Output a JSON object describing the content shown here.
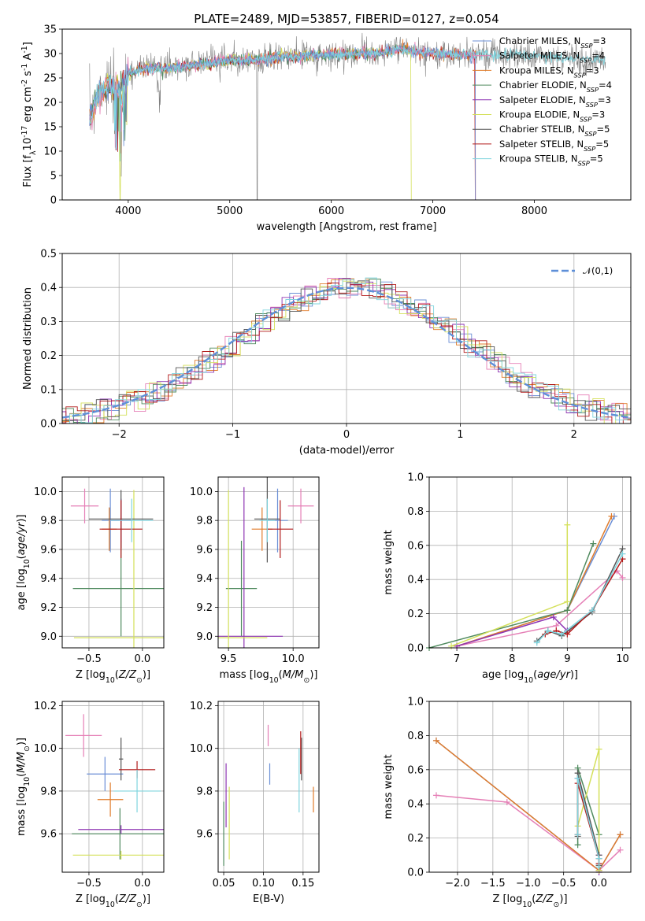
{
  "colors": {
    "Chabrier MILES": "#6b8fd6",
    "Salpeter MILES": "#e57fb6",
    "Kroupa MILES": "#e07b2a",
    "Chabrier ELODIE": "#4f8a5e",
    "Salpeter ELODIE": "#8e35b3",
    "Kroupa ELODIE": "#d4e05a",
    "Chabrier STELIB": "#555555",
    "Salpeter STELIB": "#b21a1a",
    "Kroupa STELIB": "#7fd4de",
    "data": "#808080",
    "gauss": "#5e8fd8"
  },
  "chart_data": [
    {
      "id": "spectrum",
      "type": "line",
      "title": "PLATE=2489, MJD=53857, FIBERID=0127, z=0.054",
      "xlabel": "wavelength [Angstrom, rest frame]",
      "ylabel": "Flux [f$_\\lambda$10$^{-17}$ erg cm$^{-2}$ s$^{-1}$ A$^{-1}$]",
      "xlim": [
        3350,
        8950
      ],
      "ylim": [
        0,
        35
      ],
      "xticks": [
        4000,
        5000,
        6000,
        7000,
        8000
      ],
      "yticks": [
        0,
        5,
        10,
        15,
        20,
        25,
        30,
        35
      ],
      "grid": false,
      "legend_position": "right",
      "legend": [
        {
          "label": "Chabrier MILES, N$_{SSP}$=3",
          "color_key": "Chabrier MILES"
        },
        {
          "label": "Salpeter MILES, N$_{SSP}$=4",
          "color_key": "Salpeter MILES"
        },
        {
          "label": "Kroupa MILES, N$_{SSP}$=3",
          "color_key": "Kroupa MILES"
        },
        {
          "label": "Chabrier ELODIE, N$_{SSP}$=4",
          "color_key": "Chabrier ELODIE"
        },
        {
          "label": "Salpeter ELODIE, N$_{SSP}$=3",
          "color_key": "Salpeter ELODIE"
        },
        {
          "label": "Kroupa ELODIE, N$_{SSP}$=3",
          "color_key": "Kroupa ELODIE"
        },
        {
          "label": "Chabrier STELIB, N$_{SSP}$=5",
          "color_key": "Chabrier STELIB"
        },
        {
          "label": "Salpeter STELIB, N$_{SSP}$=5",
          "color_key": "Salpeter STELIB"
        },
        {
          "label": "Kroupa STELIB, N$_{SSP}$=5",
          "color_key": "Kroupa STELIB"
        }
      ],
      "series": [
        {
          "model": "data",
          "x": [
            3620,
            3650,
            3700,
            3750,
            3800,
            3850,
            3900,
            3950,
            4000,
            4100,
            4200,
            4300,
            4400,
            4500,
            4600,
            4700,
            4800,
            4900,
            5000,
            5100,
            5200,
            5300,
            5400,
            5500,
            5600,
            5700,
            5800,
            5900,
            6000,
            6100,
            6200,
            6300,
            6400,
            6500,
            6600,
            6700,
            6800,
            6900,
            7000,
            7100,
            7200,
            7300,
            7400,
            7500,
            7600,
            7700,
            7800,
            7900,
            8000,
            8100,
            8200,
            8300,
            8400,
            8500,
            8600,
            8700
          ],
          "y": [
            16,
            19,
            22,
            24,
            23,
            22,
            24,
            20,
            26,
            27,
            27.5,
            26.5,
            27,
            28,
            27.5,
            28,
            28.5,
            28,
            29,
            28.5,
            29,
            27.5,
            29,
            29.5,
            29,
            30,
            29.5,
            29.8,
            30,
            29.5,
            29.8,
            30,
            29.5,
            30,
            30.5,
            32,
            30.5,
            30,
            29.5,
            30,
            29.5,
            30,
            29.8,
            29.5,
            30,
            29.5,
            29.5,
            29.7,
            29.4,
            29.3,
            29.1,
            29,
            28.8,
            28.6,
            28.7,
            28.5
          ]
        },
        {
          "model": "Chabrier MILES",
          "x": [
            3620,
            3700,
            3800,
            3900,
            4000,
            4200,
            4400,
            4600,
            4800,
            5000,
            5200,
            5400,
            5600,
            5800,
            6000,
            6200,
            6400,
            6600,
            6700,
            6800,
            7000,
            7200,
            7400
          ],
          "y": [
            17,
            22,
            23,
            23,
            26,
            27,
            27,
            27.5,
            28,
            28.5,
            28.6,
            29,
            29.2,
            29.5,
            29.8,
            29.9,
            30,
            30.5,
            31,
            30.5,
            30,
            29.8,
            29.5
          ]
        },
        {
          "model": "Kroupa STELIB",
          "x": [
            3620,
            3700,
            3800,
            3900,
            3940,
            4000,
            4200,
            4400,
            4600,
            4800,
            5000,
            5200,
            5400,
            5600,
            5800,
            6000,
            6200,
            6400,
            6600,
            6700,
            6800,
            7000,
            7200,
            7400,
            7600,
            7800,
            8000,
            8200,
            8400,
            8600
          ],
          "y": [
            16,
            21,
            24,
            23,
            20,
            26,
            27,
            27,
            27.5,
            28,
            28.8,
            28.7,
            29,
            29.5,
            29.6,
            29.9,
            30,
            30.1,
            30.5,
            31,
            30.5,
            30,
            29.6,
            29.8,
            29.6,
            29.8,
            29.4,
            29.2,
            28.9,
            28.7
          ]
        }
      ]
    },
    {
      "id": "residuals",
      "type": "line",
      "xlabel": "(data-model)/error",
      "ylabel": "Normed distribution",
      "xlim": [
        -2.5,
        2.5
      ],
      "ylim": [
        0,
        0.5
      ],
      "xticks": [
        -2,
        -1,
        0,
        1,
        2
      ],
      "yticks": [
        0.0,
        0.1,
        0.2,
        0.3,
        0.4,
        0.5
      ],
      "grid": true,
      "legend_position": "top-right",
      "legend": [
        {
          "label": "$\\mathcal{N}(0,1)$",
          "color_key": "gauss",
          "style": "dashed"
        }
      ]
    },
    {
      "id": "age-vs-Z",
      "type": "scatter",
      "errorbars": true,
      "xlabel": "Z [log$_{10}$($Z/Z_\\odot$)]",
      "ylabel": "age  [log$_{10}$($age/yr$)]",
      "xlim": [
        -0.75,
        0.2
      ],
      "ylim": [
        8.92,
        10.1
      ],
      "xticks": [
        -0.5,
        0.0
      ],
      "yticks": [
        9.0,
        9.2,
        9.4,
        9.6,
        9.8,
        10.0
      ],
      "grid": true,
      "points": [
        {
          "model": "Chabrier MILES",
          "x": -0.3,
          "y": 9.8,
          "xerr": 0.08,
          "yerr": 0.22
        },
        {
          "model": "Salpeter MILES",
          "x": -0.54,
          "y": 9.9,
          "xerr": 0.13,
          "yerr": 0.12
        },
        {
          "model": "Kroupa MILES",
          "x": -0.31,
          "y": 9.74,
          "xerr": 0.07,
          "yerr": 0.15
        },
        {
          "model": "Chabrier ELODIE",
          "x": -0.2,
          "y": 9.33,
          "xerr": 0.45,
          "yerr": 0.33
        },
        {
          "model": "Salpeter ELODIE",
          "x": -0.2,
          "y": 9.8,
          "xerr": 0.1,
          "yerr": 0.15
        },
        {
          "model": "Kroupa ELODIE",
          "x": -0.08,
          "y": 8.99,
          "xerr": 0.56,
          "yerr": 1.02
        },
        {
          "model": "Chabrier STELIB",
          "x": -0.2,
          "y": 9.81,
          "xerr": 0.3,
          "yerr": 0.2
        },
        {
          "model": "Salpeter STELIB",
          "x": -0.2,
          "y": 9.74,
          "xerr": 0.2,
          "yerr": 0.2
        },
        {
          "model": "Kroupa STELIB",
          "x": -0.1,
          "y": 9.8,
          "xerr": 0.2,
          "yerr": 0.15
        }
      ]
    },
    {
      "id": "age-vs-mass",
      "type": "scatter",
      "errorbars": true,
      "xlabel": "mass [log$_{10}$($M/M_\\odot$)]",
      "xlim": [
        9.42,
        10.2
      ],
      "ylim": [
        8.92,
        10.1
      ],
      "xticks": [
        9.5,
        10.0
      ],
      "yticks": [
        9.0,
        9.2,
        9.4,
        9.6,
        9.8,
        10.0
      ],
      "grid": true,
      "points": [
        {
          "model": "Chabrier MILES",
          "x": 9.88,
          "y": 9.8,
          "xerr": 0.08,
          "yerr": 0.22
        },
        {
          "model": "Salpeter MILES",
          "x": 10.06,
          "y": 9.9,
          "xerr": 0.1,
          "yerr": 0.12
        },
        {
          "model": "Kroupa MILES",
          "x": 9.76,
          "y": 9.74,
          "xerr": 0.08,
          "yerr": 0.15
        },
        {
          "model": "Chabrier ELODIE",
          "x": 9.6,
          "y": 9.33,
          "xerr": 0.12,
          "yerr": 0.33
        },
        {
          "model": "Salpeter ELODIE",
          "x": 9.62,
          "y": 9.0,
          "xerr": 0.3,
          "yerr": 1.03
        },
        {
          "model": "Kroupa ELODIE",
          "x": 9.5,
          "y": 8.99,
          "xerr": 0.3,
          "yerr": 1.02
        },
        {
          "model": "Chabrier STELIB",
          "x": 9.8,
          "y": 9.81,
          "xerr": 0.1,
          "yerr": 0.3
        },
        {
          "model": "Salpeter STELIB",
          "x": 9.9,
          "y": 9.74,
          "xerr": 0.1,
          "yerr": 0.2
        },
        {
          "model": "Kroupa STELIB",
          "x": 9.8,
          "y": 9.8,
          "xerr": 0.06,
          "yerr": 0.15
        }
      ]
    },
    {
      "id": "weight-vs-age",
      "type": "line",
      "xlabel": "age  [log$_{10}$($age/yr$)]",
      "ylabel": "mass weight",
      "xlim": [
        6.5,
        10.15
      ],
      "ylim": [
        0,
        1.0
      ],
      "xticks": [
        7,
        8,
        9,
        10
      ],
      "yticks": [
        0.0,
        0.2,
        0.4,
        0.6,
        0.8,
        1.0
      ],
      "grid": true,
      "series": [
        {
          "model": "Chabrier MILES",
          "x": [
            7.0,
            9.0,
            9.85
          ],
          "y": [
            0.01,
            0.22,
            0.77
          ]
        },
        {
          "model": "Salpeter MILES",
          "x": [
            7.0,
            8.8,
            9.9,
            10.0
          ],
          "y": [
            0.01,
            0.13,
            0.45,
            0.41
          ]
        },
        {
          "model": "Kroupa MILES",
          "x": [
            7.0,
            9.0,
            9.8
          ],
          "y": [
            0.01,
            0.22,
            0.77
          ]
        },
        {
          "model": "Chabrier ELODIE",
          "x": [
            6.5,
            9.0,
            9.47
          ],
          "y": [
            0.0,
            0.22,
            0.61
          ]
        },
        {
          "model": "Salpeter ELODIE",
          "x": [
            7.0,
            8.75,
            9.0
          ],
          "y": [
            0.01,
            0.18,
            0.1
          ]
        },
        {
          "model": "Kroupa ELODIE",
          "x": [
            6.9,
            9.0,
            9.0
          ],
          "y": [
            0.01,
            0.27,
            0.72
          ]
        },
        {
          "model": "Chabrier STELIB",
          "x": [
            8.45,
            8.65,
            8.9,
            9.45,
            10.0
          ],
          "y": [
            0.04,
            0.1,
            0.07,
            0.21,
            0.58
          ]
        },
        {
          "model": "Salpeter STELIB",
          "x": [
            8.6,
            8.8,
            9.0,
            9.45,
            10.0
          ],
          "y": [
            0.08,
            0.1,
            0.08,
            0.22,
            0.52
          ]
        },
        {
          "model": "Kroupa STELIB",
          "x": [
            8.45,
            8.65,
            8.9,
            9.45,
            10.0
          ],
          "y": [
            0.03,
            0.1,
            0.08,
            0.22,
            0.55
          ]
        }
      ]
    },
    {
      "id": "mass-vs-Z",
      "type": "scatter",
      "errorbars": true,
      "xlabel": "Z [log$_{10}$($Z/Z_\\odot$)]",
      "ylabel": "mass [log$_{10}$($M/M_\\odot$)]",
      "xlim": [
        -0.75,
        0.2
      ],
      "ylim": [
        9.42,
        10.22
      ],
      "xticks": [
        -0.5,
        0.0
      ],
      "yticks": [
        9.6,
        9.8,
        10.0,
        10.2
      ],
      "grid": true,
      "points": [
        {
          "model": "Chabrier MILES",
          "x": -0.35,
          "y": 9.88,
          "xerr": 0.17,
          "yerr": 0.08
        },
        {
          "model": "Salpeter MILES",
          "x": -0.55,
          "y": 10.06,
          "xerr": 0.17,
          "yerr": 0.1
        },
        {
          "model": "Kroupa MILES",
          "x": -0.3,
          "y": 9.76,
          "xerr": 0.12,
          "yerr": 0.08
        },
        {
          "model": "Chabrier ELODIE",
          "x": -0.21,
          "y": 9.6,
          "xerr": 0.45,
          "yerr": 0.12
        },
        {
          "model": "Salpeter ELODIE",
          "x": -0.2,
          "y": 9.62,
          "xerr": 0.4,
          "yerr": 0.02
        },
        {
          "model": "Kroupa ELODIE",
          "x": -0.2,
          "y": 9.5,
          "xerr": 0.45,
          "yerr": 0.02
        },
        {
          "model": "Chabrier STELIB",
          "x": -0.2,
          "y": 9.95,
          "xerr": 0.02,
          "yerr": 0.1
        },
        {
          "model": "Salpeter STELIB",
          "x": -0.05,
          "y": 9.9,
          "xerr": 0.17,
          "yerr": 0.04
        },
        {
          "model": "Kroupa STELIB",
          "x": -0.05,
          "y": 9.8,
          "xerr": 0.22,
          "yerr": 0.1
        }
      ]
    },
    {
      "id": "mass-vs-EBV",
      "type": "scatter",
      "errorbars": true,
      "xlabel": "E(B-V)",
      "xlim": [
        0.043,
        0.17
      ],
      "ylim": [
        9.42,
        10.22
      ],
      "xticks": [
        0.05,
        0.1,
        0.15
      ],
      "yticks": [
        9.6,
        9.8,
        10.0,
        10.2
      ],
      "grid": true,
      "points": [
        {
          "model": "Chabrier MILES",
          "x": 0.108,
          "y": 9.88,
          "xerr": 0.0,
          "yerr": 0.05
        },
        {
          "model": "Salpeter MILES",
          "x": 0.106,
          "y": 10.06,
          "xerr": 0.0,
          "yerr": 0.05
        },
        {
          "model": "Kroupa MILES",
          "x": 0.163,
          "y": 9.76,
          "xerr": 0.0,
          "yerr": 0.06
        },
        {
          "model": "Chabrier ELODIE",
          "x": 0.05,
          "y": 9.6,
          "xerr": 0.0,
          "yerr": 0.15
        },
        {
          "model": "Salpeter ELODIE",
          "x": 0.053,
          "y": 9.78,
          "xerr": 0.0,
          "yerr": 0.15
        },
        {
          "model": "Kroupa ELODIE",
          "x": 0.057,
          "y": 9.65,
          "xerr": 0.0,
          "yerr": 0.17
        },
        {
          "model": "Chabrier STELIB",
          "x": 0.148,
          "y": 9.95,
          "xerr": 0.0,
          "yerr": 0.1
        },
        {
          "model": "Salpeter STELIB",
          "x": 0.147,
          "y": 9.98,
          "xerr": 0.0,
          "yerr": 0.1
        },
        {
          "model": "Kroupa STELIB",
          "x": 0.145,
          "y": 9.85,
          "xerr": 0.0,
          "yerr": 0.15
        }
      ]
    },
    {
      "id": "weight-vs-Z",
      "type": "line",
      "xlabel": "Z [log$_{10}$($Z/Z_\\odot$)]",
      "ylabel": "mass weight",
      "xlim": [
        -2.4,
        0.45
      ],
      "ylim": [
        0,
        1.0
      ],
      "xticks": [
        -2.0,
        -1.5,
        -1.0,
        -0.5,
        0.0
      ],
      "yticks": [
        0.0,
        0.2,
        0.4,
        0.6,
        0.8,
        1.0
      ],
      "grid": true,
      "series": [
        {
          "model": "Chabrier MILES",
          "x": [
            -2.3,
            0.0,
            0.3
          ],
          "y": [
            0.77,
            0.01,
            0.22
          ]
        },
        {
          "model": "Salpeter MILES",
          "x": [
            -2.3,
            -1.3,
            0.0,
            0.3
          ],
          "y": [
            0.45,
            0.41,
            0.01,
            0.13
          ]
        },
        {
          "model": "Kroupa MILES",
          "x": [
            -2.3,
            0.0,
            0.3
          ],
          "y": [
            0.77,
            0.01,
            0.22
          ]
        },
        {
          "model": "Chabrier ELODIE",
          "x": [
            -0.3,
            -0.3,
            0.0
          ],
          "y": [
            0.16,
            0.61,
            0.22
          ]
        },
        {
          "model": "Salpeter ELODIE",
          "x": [
            -0.3,
            0.0,
            0.0
          ],
          "y": [
            0.55,
            0.1,
            0.0
          ]
        },
        {
          "model": "Kroupa ELODIE",
          "x": [
            -0.3,
            0.0,
            0.0
          ],
          "y": [
            0.27,
            0.72,
            0.01
          ]
        },
        {
          "model": "Chabrier STELIB",
          "x": [
            -0.3,
            -0.3,
            0.0,
            0.0
          ],
          "y": [
            0.21,
            0.58,
            0.1,
            0.04
          ]
        },
        {
          "model": "Salpeter STELIB",
          "x": [
            -0.3,
            -0.3,
            0.0,
            0.0
          ],
          "y": [
            0.22,
            0.52,
            0.08,
            0.05
          ]
        },
        {
          "model": "Kroupa STELIB",
          "x": [
            -0.3,
            -0.3,
            0.0,
            0.0
          ],
          "y": [
            0.22,
            0.55,
            0.08,
            0.03
          ]
        }
      ]
    }
  ]
}
